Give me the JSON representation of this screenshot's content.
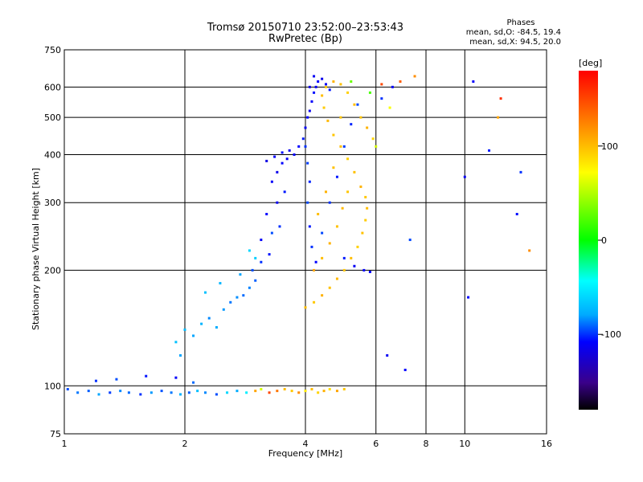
{
  "chart_data": {
    "type": "scatter",
    "title": "Tromsø 20150710 23:52:00–23:53:43",
    "subtitle": "RwPretec (Bp)",
    "xlabel": "Frequency [MHz]",
    "ylabel": "Stationary phase Virtual Height [km]",
    "x_scale": "log",
    "y_scale": "log",
    "xlim": [
      1,
      16
    ],
    "ylim": [
      75,
      750
    ],
    "x_ticks": [
      1,
      2,
      4,
      6,
      8,
      10,
      16
    ],
    "y_ticks": [
      75,
      100,
      200,
      300,
      400,
      500,
      600,
      750
    ],
    "grid": true,
    "info": {
      "heading": "Phases",
      "line1": "mean, sd,O: -84.5, 19.4",
      "line2": "mean, sd,X: 94.5, 20.0"
    },
    "colorbar": {
      "label": "[deg]",
      "ticks": [
        100,
        0,
        -100
      ],
      "range": [
        -180,
        180
      ]
    },
    "series": [
      {
        "name": "O",
        "phase_mean": -84.5,
        "phase_sd": 19.4,
        "points": [
          [
            1.02,
            98,
            -95
          ],
          [
            1.08,
            96,
            -88
          ],
          [
            1.15,
            97,
            -92
          ],
          [
            1.22,
            95,
            -80
          ],
          [
            1.3,
            96,
            -98
          ],
          [
            1.38,
            97,
            -85
          ],
          [
            1.45,
            96,
            -90
          ],
          [
            1.55,
            95,
            -100
          ],
          [
            1.65,
            96,
            -82
          ],
          [
            1.75,
            97,
            -94
          ],
          [
            1.85,
            96,
            -88
          ],
          [
            1.95,
            95,
            -76
          ],
          [
            2.05,
            96,
            -92
          ],
          [
            2.15,
            97,
            -70
          ],
          [
            2.25,
            96,
            -85
          ],
          [
            2.4,
            95,
            -95
          ],
          [
            2.55,
            96,
            -60
          ],
          [
            2.7,
            97,
            -78
          ],
          [
            2.85,
            96,
            -50
          ],
          [
            1.2,
            103,
            -100
          ],
          [
            1.35,
            104,
            -95
          ],
          [
            1.6,
            106,
            -105
          ],
          [
            1.9,
            105,
            -110
          ],
          [
            2.1,
            102,
            -90
          ],
          [
            1.9,
            130,
            -70
          ],
          [
            2.0,
            140,
            -72
          ],
          [
            2.1,
            135,
            -80
          ],
          [
            2.2,
            145,
            -75
          ],
          [
            2.3,
            150,
            -85
          ],
          [
            2.4,
            142,
            -78
          ],
          [
            2.5,
            158,
            -82
          ],
          [
            2.6,
            165,
            -88
          ],
          [
            2.7,
            170,
            -84
          ],
          [
            2.8,
            172,
            -90
          ],
          [
            2.9,
            180,
            -86
          ],
          [
            3.0,
            188,
            -92
          ],
          [
            2.25,
            175,
            -70
          ],
          [
            2.45,
            185,
            -74
          ],
          [
            2.75,
            195,
            -80
          ],
          [
            2.95,
            200,
            -95
          ],
          [
            3.1,
            210,
            -100
          ],
          [
            3.25,
            220,
            -105
          ],
          [
            3.1,
            240,
            -110
          ],
          [
            3.3,
            250,
            -95
          ],
          [
            3.45,
            260,
            -100
          ],
          [
            3.2,
            280,
            -108
          ],
          [
            3.4,
            300,
            -112
          ],
          [
            3.55,
            320,
            -104
          ],
          [
            3.3,
            340,
            -110
          ],
          [
            3.4,
            360,
            -115
          ],
          [
            3.5,
            380,
            -108
          ],
          [
            3.6,
            390,
            -112
          ],
          [
            3.2,
            385,
            -118
          ],
          [
            3.35,
            395,
            -110
          ],
          [
            3.5,
            405,
            -106
          ],
          [
            3.65,
            410,
            -114
          ],
          [
            3.75,
            400,
            -110
          ],
          [
            3.85,
            420,
            -108
          ],
          [
            3.95,
            440,
            -104
          ],
          [
            4.0,
            470,
            -112
          ],
          [
            4.05,
            500,
            -108
          ],
          [
            4.1,
            520,
            -114
          ],
          [
            4.15,
            550,
            -110
          ],
          [
            4.2,
            580,
            -106
          ],
          [
            4.25,
            600,
            -112
          ],
          [
            4.3,
            620,
            -108
          ],
          [
            4.4,
            630,
            -115
          ],
          [
            4.5,
            610,
            -110
          ],
          [
            4.6,
            590,
            -104
          ],
          [
            4.1,
            600,
            -118
          ],
          [
            4.2,
            640,
            -112
          ],
          [
            4.0,
            420,
            -100
          ],
          [
            4.05,
            380,
            -98
          ],
          [
            4.1,
            340,
            -102
          ],
          [
            4.05,
            300,
            -96
          ],
          [
            4.1,
            260,
            -104
          ],
          [
            4.15,
            230,
            -100
          ],
          [
            4.25,
            210,
            -108
          ],
          [
            4.4,
            250,
            -96
          ],
          [
            4.6,
            300,
            -100
          ],
          [
            4.8,
            350,
            -104
          ],
          [
            5.0,
            420,
            -98
          ],
          [
            5.2,
            480,
            -102
          ],
          [
            5.4,
            540,
            -96
          ],
          [
            5.6,
            200,
            -110
          ],
          [
            5.8,
            198,
            -108
          ],
          [
            5.3,
            205,
            -112
          ],
          [
            5.0,
            215,
            -104
          ],
          [
            6.2,
            560,
            -100
          ],
          [
            6.6,
            600,
            -110
          ],
          [
            10.0,
            350,
            -112
          ],
          [
            10.2,
            170,
            -108
          ],
          [
            10.5,
            620,
            -110
          ],
          [
            11.5,
            410,
            -104
          ],
          [
            13.5,
            280,
            -106
          ],
          [
            13.8,
            360,
            -100
          ],
          [
            7.3,
            240,
            -96
          ],
          [
            7.1,
            110,
            -108
          ],
          [
            6.4,
            120,
            -112
          ],
          [
            2.9,
            225,
            -60
          ],
          [
            3.0,
            215,
            -64
          ],
          [
            1.95,
            120,
            -80
          ]
        ]
      },
      {
        "name": "X",
        "phase_mean": 94.5,
        "phase_sd": 20.0,
        "points": [
          [
            3.0,
            97,
            110
          ],
          [
            3.1,
            98,
            60
          ],
          [
            3.25,
            96,
            150
          ],
          [
            3.4,
            97,
            130
          ],
          [
            3.55,
            98,
            100
          ],
          [
            3.7,
            97,
            95
          ],
          [
            3.85,
            96,
            120
          ],
          [
            4.0,
            97,
            80
          ],
          [
            4.15,
            98,
            100
          ],
          [
            4.3,
            96,
            90
          ],
          [
            4.45,
            97,
            105
          ],
          [
            4.6,
            98,
            85
          ],
          [
            4.8,
            97,
            110
          ],
          [
            5.0,
            98,
            95
          ],
          [
            4.0,
            160,
            100
          ],
          [
            4.2,
            165,
            95
          ],
          [
            4.4,
            172,
            105
          ],
          [
            4.6,
            180,
            98
          ],
          [
            4.8,
            190,
            102
          ],
          [
            5.0,
            200,
            96
          ],
          [
            5.2,
            215,
            100
          ],
          [
            5.4,
            230,
            92
          ],
          [
            5.55,
            250,
            98
          ],
          [
            5.65,
            270,
            94
          ],
          [
            5.7,
            290,
            100
          ],
          [
            5.65,
            310,
            96
          ],
          [
            5.5,
            330,
            104
          ],
          [
            5.3,
            360,
            98
          ],
          [
            5.1,
            390,
            92
          ],
          [
            4.9,
            420,
            100
          ],
          [
            4.7,
            450,
            96
          ],
          [
            4.55,
            490,
            102
          ],
          [
            4.45,
            530,
            94
          ],
          [
            4.4,
            570,
            100
          ],
          [
            4.5,
            600,
            96
          ],
          [
            4.7,
            620,
            104
          ],
          [
            4.9,
            610,
            98
          ],
          [
            5.1,
            580,
            92
          ],
          [
            5.3,
            540,
            100
          ],
          [
            5.5,
            500,
            96
          ],
          [
            5.7,
            470,
            104
          ],
          [
            5.9,
            440,
            90
          ],
          [
            6.0,
            420,
            60
          ],
          [
            4.2,
            200,
            110
          ],
          [
            4.4,
            215,
            100
          ],
          [
            4.6,
            235,
            105
          ],
          [
            4.8,
            260,
            98
          ],
          [
            4.95,
            290,
            102
          ],
          [
            5.1,
            320,
            96
          ],
          [
            4.3,
            280,
            100
          ],
          [
            4.5,
            320,
            104
          ],
          [
            4.7,
            370,
            98
          ],
          [
            4.9,
            500,
            96
          ],
          [
            5.2,
            620,
            30
          ],
          [
            6.2,
            610,
            150
          ],
          [
            6.9,
            620,
            140
          ],
          [
            7.5,
            640,
            120
          ],
          [
            12.3,
            560,
            160
          ],
          [
            12.1,
            500,
            110
          ],
          [
            14.5,
            225,
            120
          ],
          [
            6.5,
            530,
            70
          ],
          [
            5.8,
            580,
            20
          ]
        ]
      }
    ]
  }
}
